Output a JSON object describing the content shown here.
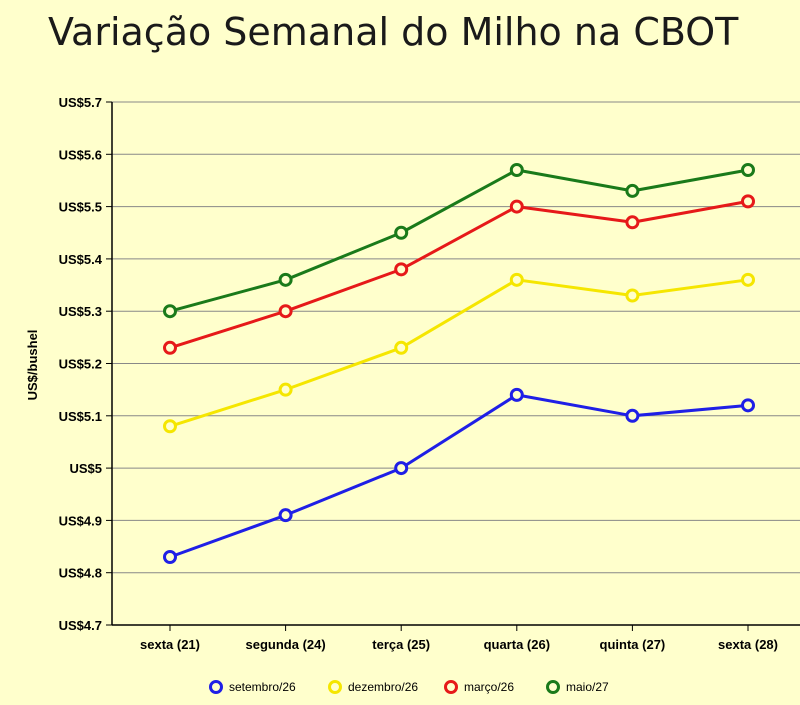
{
  "chart_data": {
    "type": "line",
    "title": "Variação Semanal do Milho na CBOT",
    "xlabel": "",
    "ylabel": "US$/bushel",
    "categories": [
      "sexta (21)",
      "segunda (24)",
      "terça (25)",
      "quarta (26)",
      "quinta (27)",
      "sexta (28)"
    ],
    "ylim": [
      4.7,
      5.7
    ],
    "yticks": [
      4.7,
      4.8,
      4.9,
      5.0,
      5.1,
      5.2,
      5.3,
      5.4,
      5.5,
      5.6,
      5.7
    ],
    "ytick_labels": [
      "US$4.7",
      "US$4.8",
      "US$4.9",
      "US$5",
      "US$5.1",
      "US$5.2",
      "US$5.3",
      "US$5.4",
      "US$5.5",
      "US$5.6",
      "US$5.7"
    ],
    "grid": true,
    "legend_position": "bottom",
    "series": [
      {
        "name": "setembro/26",
        "color": "#1f1fe6",
        "values": [
          4.83,
          4.91,
          5.0,
          5.14,
          5.1,
          5.12
        ]
      },
      {
        "name": "dezembro/26",
        "color": "#f5e600",
        "values": [
          5.08,
          5.15,
          5.23,
          5.36,
          5.33,
          5.36
        ]
      },
      {
        "name": "março/26",
        "color": "#e61919",
        "values": [
          5.23,
          5.3,
          5.38,
          5.5,
          5.47,
          5.51
        ]
      },
      {
        "name": "maio/27",
        "color": "#1a7a1a",
        "values": [
          5.3,
          5.36,
          5.45,
          5.57,
          5.53,
          5.57
        ]
      }
    ]
  }
}
